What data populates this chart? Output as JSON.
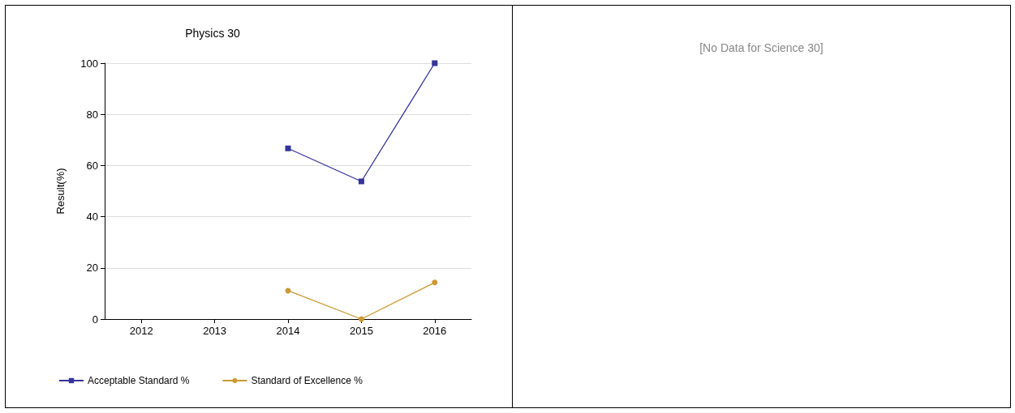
{
  "chart_data": [
    {
      "type": "line",
      "title": "Physics 30",
      "ylabel": "Result(%)",
      "categories": [
        "2012",
        "2013",
        "2014",
        "2015",
        "2016"
      ],
      "series": [
        {
          "name": "Acceptable Standard %",
          "color": "#333399",
          "marker": "square",
          "values": [
            null,
            null,
            66.7,
            53.8,
            100
          ]
        },
        {
          "name": "Standard of Excellence %",
          "color": "#cc9933",
          "marker": "circle",
          "values": [
            null,
            null,
            11.1,
            0,
            14.3
          ]
        }
      ],
      "ylim": [
        0,
        100
      ],
      "yticks": [
        0,
        20,
        40,
        60,
        80,
        100
      ],
      "grid": "y",
      "legend": "bottom"
    },
    {
      "type": "other",
      "title": "[No Data for Science 30]"
    }
  ]
}
